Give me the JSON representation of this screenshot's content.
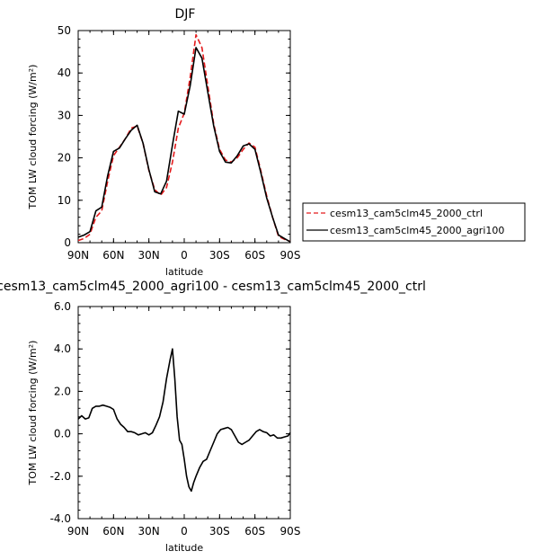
{
  "chart_data": [
    {
      "type": "line",
      "title": "DJF",
      "xlabel": "latitude",
      "ylabel": "TOM LW cloud forcing (W/m²)",
      "xlim": [
        90,
        -90
      ],
      "ylim": [
        0,
        50
      ],
      "x_ticks": [
        "90N",
        "60N",
        "30N",
        "0",
        "30S",
        "60S",
        "90S"
      ],
      "y_ticks": [
        "0",
        "10",
        "20",
        "30",
        "40",
        "50"
      ],
      "grid": false,
      "legend_position": "right",
      "x": [
        90,
        85,
        80,
        75,
        70,
        65,
        60,
        55,
        50,
        45,
        40,
        35,
        30,
        25,
        20,
        15,
        10,
        5,
        0,
        -5,
        -10,
        -15,
        -20,
        -25,
        -30,
        -35,
        -40,
        -45,
        -50,
        -55,
        -60,
        -65,
        -70,
        -75,
        -80,
        -85,
        -90
      ],
      "series": [
        {
          "name": "cesm13_cam5clm45_2000_ctrl",
          "color": "#e41a1c",
          "dash": "dashed",
          "values": [
            0.5,
            1.0,
            2.0,
            6.0,
            7.5,
            14.5,
            20.5,
            22.5,
            24.5,
            27.0,
            27.5,
            23.5,
            17.0,
            12.5,
            11.2,
            13.0,
            19.0,
            27.0,
            30.5,
            39.0,
            49.0,
            46.0,
            37.0,
            28.0,
            22.0,
            19.5,
            19.0,
            20.0,
            22.0,
            23.5,
            22.5,
            17.0,
            11.0,
            6.0,
            1.5,
            0.8,
            0.3
          ]
        },
        {
          "name": "cesm13_cam5clm45_2000_agri100",
          "color": "#000000",
          "dash": "solid",
          "values": [
            1.3,
            1.8,
            2.6,
            7.5,
            8.4,
            15.8,
            21.5,
            22.3,
            24.5,
            26.5,
            27.7,
            23.5,
            17.2,
            12.0,
            11.5,
            14.5,
            23.0,
            31.0,
            30.3,
            37.0,
            46.0,
            43.5,
            35.5,
            27.5,
            21.5,
            19.0,
            18.8,
            20.5,
            22.8,
            23.3,
            22.0,
            16.5,
            10.5,
            6.0,
            1.8,
            1.0,
            0.2
          ]
        }
      ]
    },
    {
      "type": "line",
      "title": "cesm13_cam5clm45_2000_agri100 - cesm13_cam5clm45_2000_ctrl",
      "xlabel": "latitude",
      "ylabel": "TOM LW cloud forcing (W/m²)",
      "xlim": [
        90,
        -90
      ],
      "ylim": [
        -4,
        6
      ],
      "x_ticks": [
        "90N",
        "60N",
        "30N",
        "0",
        "30S",
        "60S",
        "90S"
      ],
      "y_ticks": [
        "6.0",
        "4.0",
        "2.0",
        "0.0",
        "-2.0",
        "-4.0"
      ],
      "grid": false,
      "x": [
        90,
        87,
        84,
        81,
        78,
        75,
        72,
        69,
        66,
        63,
        60,
        57,
        54,
        51,
        48,
        45,
        42,
        39,
        36,
        33,
        30,
        27,
        24,
        21,
        18,
        15,
        12,
        10,
        8,
        6,
        4,
        2,
        0,
        -2,
        -4,
        -6,
        -8,
        -10,
        -13,
        -16,
        -19,
        -22,
        -25,
        -28,
        -31,
        -34,
        -37,
        -40,
        -43,
        -46,
        -49,
        -52,
        -55,
        -58,
        -61,
        -64,
        -67,
        -70,
        -73,
        -76,
        -79,
        -82,
        -85,
        -88,
        -90
      ],
      "series": [
        {
          "name": "",
          "color": "#000000",
          "dash": "solid",
          "values": [
            0.7,
            0.85,
            0.7,
            0.75,
            1.2,
            1.3,
            1.3,
            1.35,
            1.3,
            1.25,
            1.15,
            0.7,
            0.45,
            0.3,
            0.1,
            0.1,
            0.05,
            -0.05,
            0.0,
            0.05,
            -0.05,
            0.05,
            0.4,
            0.8,
            1.5,
            2.6,
            3.5,
            4.0,
            2.6,
            0.8,
            -0.3,
            -0.5,
            -1.2,
            -2.0,
            -2.5,
            -2.7,
            -2.3,
            -2.0,
            -1.6,
            -1.3,
            -1.2,
            -0.8,
            -0.4,
            0.0,
            0.2,
            0.25,
            0.3,
            0.2,
            -0.1,
            -0.4,
            -0.5,
            -0.4,
            -0.3,
            -0.1,
            0.1,
            0.2,
            0.1,
            0.05,
            -0.1,
            -0.05,
            -0.2,
            -0.2,
            -0.15,
            -0.1,
            0.05
          ]
        }
      ]
    }
  ]
}
